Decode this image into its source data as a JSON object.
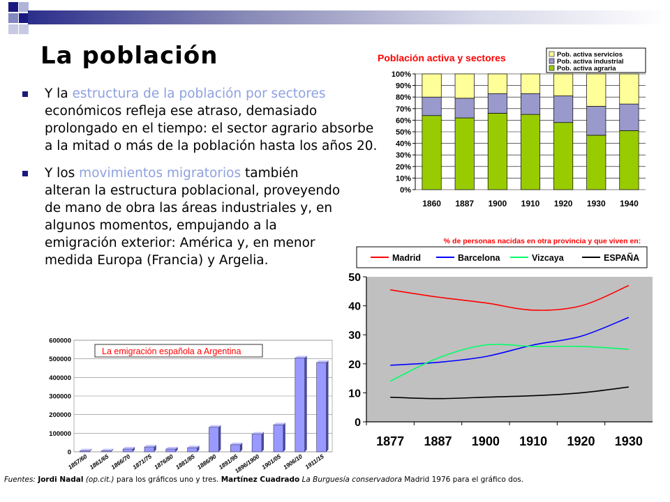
{
  "slide": {
    "title": "La población",
    "bullet1": {
      "pre": "Y la ",
      "highlight": "estructura de la población por sectores",
      "post": " económicos refleja ese atraso, demasiado prolongado en el tiempo: el sector agrario absorbe a la mitad o más de la población hasta los años 20."
    },
    "bullet2": {
      "pre": "Y los ",
      "highlight": "movimientos migratorios",
      "post": " también alteran la estructura poblacional, proveyendo de mano de obra las áreas industriales y, en algunos momentos, empujando a la emigración exterior: América y, en menor medida Europa (Francia) y Argelia."
    },
    "footer": {
      "label": "Fuentes:",
      "author1": "Jordi Nadal",
      "ref1": "(op.cit.)",
      "text1": " para los gráficos uno y tres. ",
      "author2": "Martínez Cuadrado",
      "book2": "La Burguesía conservadora",
      "text2": " Madrid 1976 para el gráfico dos."
    },
    "colors": {
      "accent_text": "#8ea0e0",
      "bullet": "#1a1a80",
      "banner": "#2c2f8a"
    }
  },
  "chart_data": [
    {
      "type": "bar",
      "stacked": true,
      "title": "Población activa y sectores",
      "categories": [
        "1860",
        "1887",
        "1900",
        "1910",
        "1920",
        "1930",
        "1940"
      ],
      "y_ticks": [
        "0%",
        "10%",
        "20%",
        "30%",
        "40%",
        "50%",
        "60%",
        "70%",
        "80%",
        "90%",
        "100%"
      ],
      "ylim": [
        0,
        100
      ],
      "series": [
        {
          "name": "Pob. activa agraria",
          "color": "#99cc00",
          "values": [
            64,
            62,
            66,
            65,
            58,
            47,
            51
          ]
        },
        {
          "name": "Pob. activa industrial",
          "color": "#9999cc",
          "values": [
            16,
            17,
            17,
            18,
            23,
            25,
            23
          ]
        },
        {
          "name": "Pob. activa servicios",
          "color": "#ffff99",
          "values": [
            20,
            21,
            17,
            17,
            19,
            28,
            26
          ]
        }
      ],
      "legend_order": [
        "Pob. activa servicios",
        "Pob. activa industrial",
        "Pob. activa agraria"
      ],
      "legend_position": "top-right"
    },
    {
      "type": "line",
      "title": "% de personas nacidas en otra provincia y que viven en:",
      "x": [
        "1877",
        "1887",
        "1900",
        "1910",
        "1920",
        "1930"
      ],
      "ylim": [
        0,
        50
      ],
      "y_ticks": [
        "0",
        "10",
        "20",
        "30",
        "40",
        "50"
      ],
      "series": [
        {
          "name": "Madrid",
          "color": "#ff0000",
          "values": [
            45.5,
            43,
            41,
            38.5,
            40,
            47
          ]
        },
        {
          "name": "Barcelona",
          "color": "#0000ff",
          "values": [
            19.5,
            20.5,
            22.5,
            26.5,
            29.5,
            36
          ]
        },
        {
          "name": "Vizcaya",
          "color": "#00ff66",
          "values": [
            14,
            22,
            26.5,
            26,
            26,
            25
          ]
        },
        {
          "name": "ESPAÑA",
          "color": "#000000",
          "values": [
            8.5,
            8,
            8.5,
            9,
            10,
            12
          ]
        }
      ],
      "legend_position": "top",
      "grid": false
    },
    {
      "type": "bar",
      "title": "La emigración española a Argentina",
      "categories": [
        "1857/60",
        "1861/65",
        "1866/70",
        "1871/75",
        "1876/80",
        "1881/85",
        "1886/90",
        "1891/95",
        "1896/1900",
        "1901/05",
        "1906/10",
        "1911/15"
      ],
      "values": [
        5000,
        5000,
        15000,
        26000,
        15000,
        22000,
        132000,
        38000,
        95000,
        145000,
        505000,
        480000
      ],
      "ylim": [
        0,
        600000
      ],
      "y_ticks": [
        "0",
        "100000",
        "200000",
        "300000",
        "400000",
        "500000",
        "600000"
      ],
      "color": "#9999ff",
      "grid": true
    }
  ]
}
